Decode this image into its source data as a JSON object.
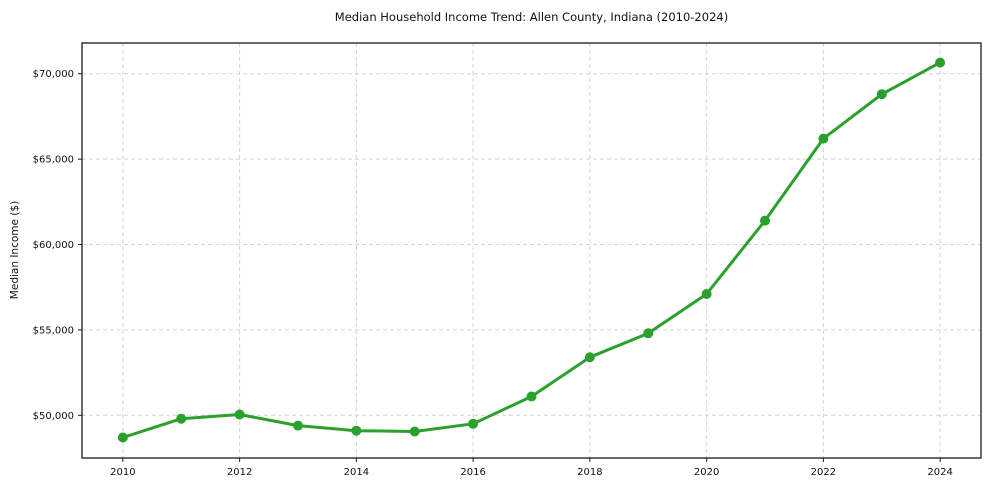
{
  "chart": {
    "title": "Median Household Income Trend: Allen County, Indiana (2010-2024)",
    "ylabel": "Median Income ($)"
  },
  "chart_data": {
    "type": "line",
    "title": "Median Household Income Trend: Allen County, Indiana (2010-2024)",
    "xlabel": "",
    "ylabel": "Median Income ($)",
    "x": [
      2010,
      2011,
      2012,
      2013,
      2014,
      2015,
      2016,
      2017,
      2018,
      2019,
      2020,
      2021,
      2022,
      2023,
      2024
    ],
    "values": [
      48700,
      49800,
      50050,
      49400,
      49100,
      49050,
      49500,
      51100,
      53400,
      54800,
      57100,
      61400,
      66200,
      68800,
      70650
    ],
    "series_name": "Median Household Income",
    "series_color": "#2ca02c",
    "marker": "circle",
    "line_width": 3,
    "marker_radius": 5,
    "x_ticks": [
      2010,
      2012,
      2014,
      2016,
      2018,
      2020,
      2022,
      2024
    ],
    "y_ticks": [
      50000,
      55000,
      60000,
      65000,
      70000
    ],
    "y_tick_labels": [
      "$50,000",
      "$55,000",
      "$60,000",
      "$65,000",
      "$70,000"
    ],
    "xlim": [
      2009.3,
      2024.7
    ],
    "ylim": [
      47500,
      71800
    ],
    "grid": true,
    "grid_style": "dashed",
    "legend": "none",
    "background": "#ffffff"
  }
}
